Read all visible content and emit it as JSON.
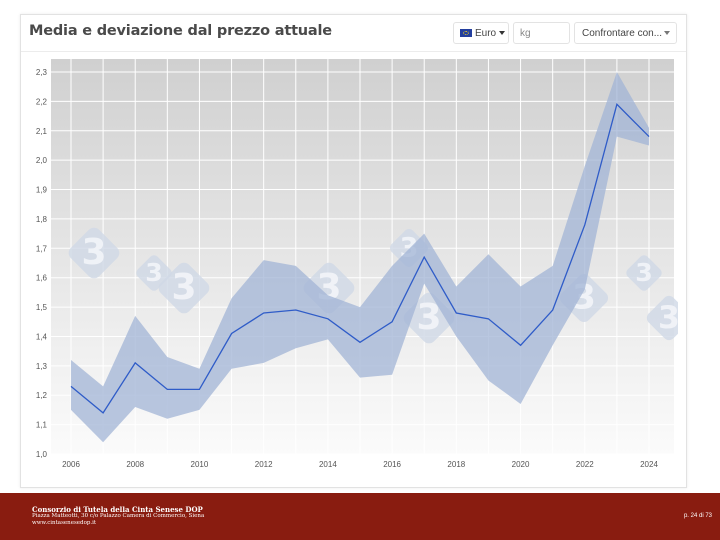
{
  "header": {
    "title": "Media e deviazione dal prezzo attuale",
    "currency": "Euro",
    "unit": "kg",
    "compare": "Confrontare con..."
  },
  "watermark": {
    "glyph": "3",
    "color": "#cfd8e6"
  },
  "chart_data": {
    "type": "area",
    "x": [
      2006,
      2007,
      2008,
      2009,
      2010,
      2011,
      2012,
      2013,
      2014,
      2015,
      2016,
      2017,
      2018,
      2019,
      2020,
      2021,
      2022,
      2023,
      2024
    ],
    "series": [
      {
        "role": "mean",
        "values": [
          1.23,
          1.14,
          1.31,
          1.22,
          1.22,
          1.41,
          1.48,
          1.49,
          1.46,
          1.38,
          1.45,
          1.67,
          1.48,
          1.46,
          1.37,
          1.49,
          1.78,
          2.19,
          2.08
        ]
      },
      {
        "role": "upper",
        "values": [
          1.32,
          1.23,
          1.47,
          1.33,
          1.29,
          1.53,
          1.66,
          1.64,
          1.54,
          1.5,
          1.64,
          1.75,
          1.57,
          1.68,
          1.57,
          1.64,
          1.98,
          2.3,
          2.11
        ]
      },
      {
        "role": "lower",
        "values": [
          1.15,
          1.04,
          1.16,
          1.12,
          1.15,
          1.29,
          1.31,
          1.36,
          1.39,
          1.26,
          1.27,
          1.58,
          1.4,
          1.25,
          1.17,
          1.37,
          1.56,
          2.08,
          2.05
        ]
      }
    ],
    "ylim": [
      1.0,
      2.3
    ],
    "yticks": [
      "1,0",
      "1,1",
      "1,2",
      "1,3",
      "1,4",
      "1,5",
      "1,6",
      "1,7",
      "1,8",
      "1,9",
      "2,0",
      "2,1",
      "2,2",
      "2,3"
    ],
    "xticks": [
      "2006",
      "2008",
      "2010",
      "2012",
      "2014",
      "2016",
      "2018",
      "2020",
      "2022",
      "2024"
    ],
    "colors": {
      "line": "#2f5cc8",
      "band": "#a2b4d6",
      "background_top": "#d0d0d0",
      "background_bottom": "#fbfbfb",
      "grid": "#ffffff"
    },
    "grid": true
  },
  "footer": {
    "org": "Consorzio di Tutela della Cinta Senese DOP",
    "address": "Piazza Matteotti, 30 c/o Palazzo Camera di Commercio, Siena",
    "website": "www.cintasenesedop.it",
    "page": "p. 24 di 73",
    "background": "#891c10"
  }
}
